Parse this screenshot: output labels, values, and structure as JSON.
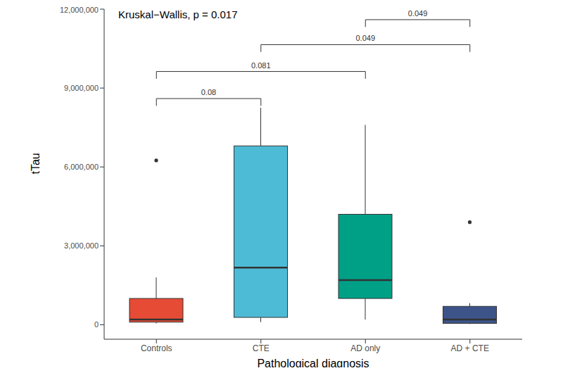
{
  "chart_data": {
    "type": "box",
    "title": "Kruskal−Wallis, p = 0.017",
    "x_label": "Pathological diagnosis",
    "y_label": "tTau",
    "categories": [
      "Controls",
      "CTE",
      "AD only",
      "AD + CTE"
    ],
    "colors": [
      "#e64b35",
      "#4dbbd5",
      "#00a087",
      "#3c5488"
    ],
    "boxes": [
      {
        "min": 50000,
        "q1": 100000,
        "median": 200000,
        "q3": 1000000,
        "max": 1800000,
        "outliers": [
          6250000
        ]
      },
      {
        "min": 100000,
        "q1": 280000,
        "median": 2170000,
        "q3": 6800000,
        "max": 8250000,
        "outliers": []
      },
      {
        "min": 200000,
        "q1": 1000000,
        "median": 1700000,
        "q3": 4200000,
        "max": 7600000,
        "outliers": []
      },
      {
        "min": 30000,
        "q1": 50000,
        "median": 200000,
        "q3": 700000,
        "max": 820000,
        "outliers": [
          3900000
        ]
      }
    ],
    "ylim": [
      -550000,
      12000000
    ],
    "yticks": [
      0,
      {
        "value": 3000000,
        "label": "3,000,000"
      },
      {
        "value": 6000000,
        "label": "6,000,000"
      },
      {
        "value": 9000000,
        "label": "9,000,000"
      },
      {
        "value": 12000000,
        "label": "12,000,000"
      }
    ],
    "annotations": [
      {
        "from": "Controls",
        "to": "CTE",
        "y": 8600000,
        "label": "0.08"
      },
      {
        "from": "Controls",
        "to": "AD only",
        "y": 9630000,
        "label": "0.081"
      },
      {
        "from": "CTE",
        "to": "AD + CTE",
        "y": 10650000,
        "label": "0.049"
      },
      {
        "from": "AD only",
        "to": "AD + CTE",
        "y": 11600000,
        "label": "0.049"
      }
    ]
  }
}
